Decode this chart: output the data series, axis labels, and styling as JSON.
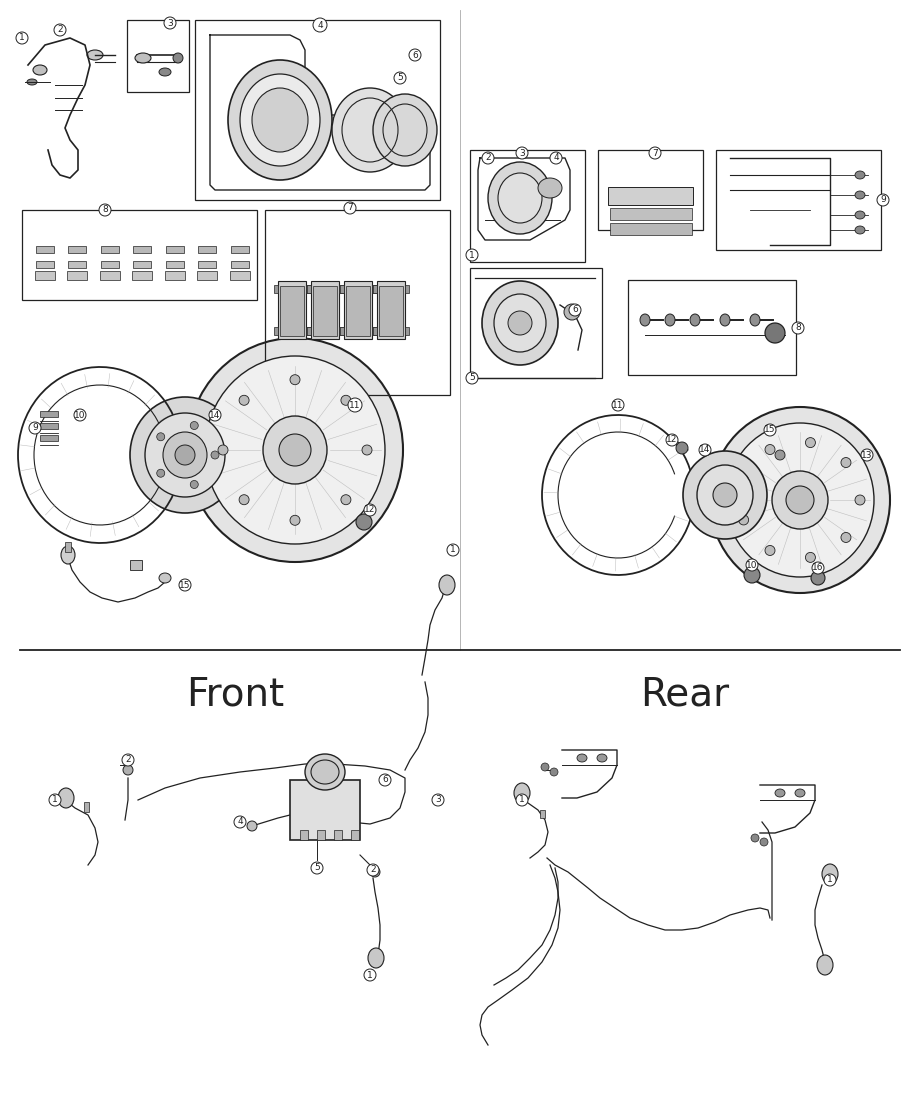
{
  "bg_color": "#ffffff",
  "line_color": "#222222",
  "text_color": "#222222",
  "front_label": "Front",
  "rear_label": "Rear",
  "figsize": [
    9.0,
    11.0
  ],
  "dpi": 100
}
